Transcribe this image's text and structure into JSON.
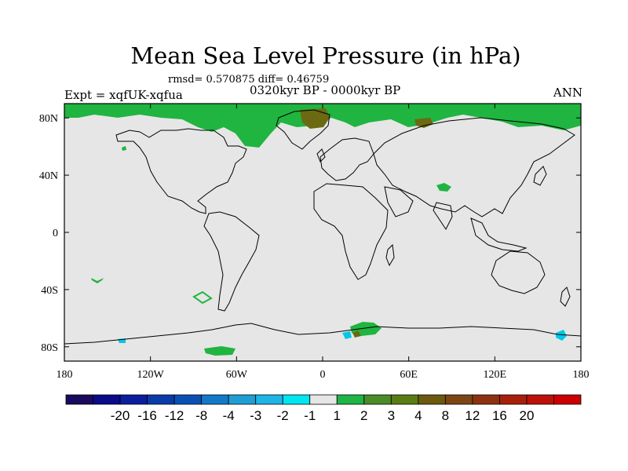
{
  "title": "Mean Sea Level Pressure (in hPa)",
  "stats": "rmsd= 0.570875 diff= 0.46759",
  "period": "0320kyr BP - 0000kyr BP",
  "expt": "Expt = xqfUK-xqfua",
  "season": "ANN",
  "colors": {
    "background": "#e6e6e6",
    "coast": "#000000",
    "green_light": "#20b440",
    "green_dark": "#4a7c1c",
    "olive": "#6b6a12",
    "cyan": "#00c8e6"
  },
  "map": {
    "lat_ticks": [
      "80N",
      "40N",
      "0",
      "40S",
      "80S"
    ],
    "lon_ticks": [
      "180",
      "120W",
      "60W",
      "0",
      "60E",
      "120E",
      "180"
    ],
    "lat_tick_values": [
      80,
      40,
      0,
      -40,
      -80
    ],
    "lon_tick_values": [
      -180,
      -120,
      -60,
      0,
      60,
      120,
      180
    ],
    "lon_range": [
      -180,
      180
    ],
    "lat_range": [
      -90,
      90
    ]
  },
  "colorbar": {
    "colors": [
      "#1a0a5e",
      "#0a0a8a",
      "#0a1e9e",
      "#0a3ca8",
      "#0a50b4",
      "#1478c8",
      "#1e9ed2",
      "#1eb4e6",
      "#00e6f0",
      "#e6e6e6",
      "#1eb446",
      "#4a8c28",
      "#5a7c14",
      "#6b5a10",
      "#7c4614",
      "#8c3210",
      "#a8200a",
      "#bc1008",
      "#cc0000"
    ],
    "labels": [
      "-20",
      "-16",
      "-12",
      "-8",
      "-4",
      "-3",
      "-2",
      "-1",
      "1",
      "2",
      "3",
      "4",
      "8",
      "12",
      "16",
      "20"
    ]
  }
}
